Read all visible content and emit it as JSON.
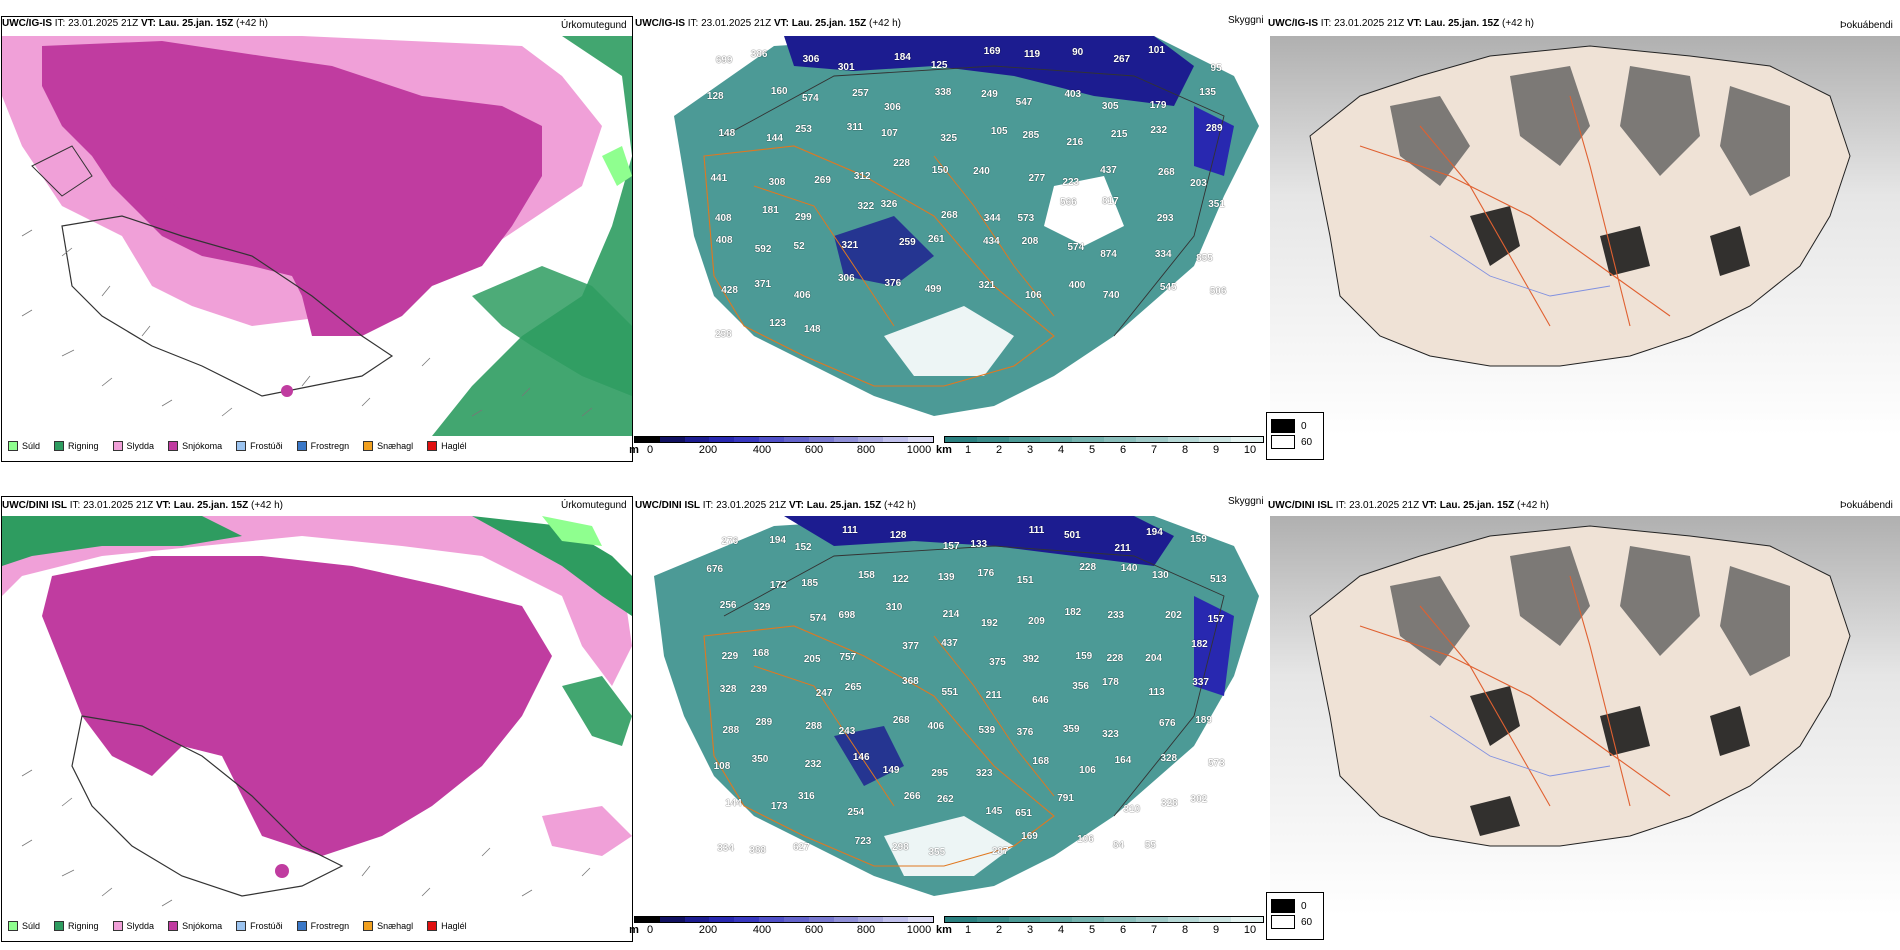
{
  "rows": [
    {
      "model": "UWC/IG-IS",
      "it_label": "IT:",
      "it_value": "23.01.2025 21Z",
      "vt_label": "VT:",
      "vt_value": "Lau. 25.jan. 15Z",
      "lead": "(+42 h)"
    },
    {
      "model": "UWC/DINI ISL",
      "it_label": "IT:",
      "it_value": "23.01.2025 21Z",
      "vt_label": "VT:",
      "vt_value": "Lau. 25.jan. 15Z",
      "lead": "(+42 h)"
    }
  ],
  "panel_labels": {
    "precip_type": "Úrkomutegund",
    "visibility": "Skyggni",
    "fog": "Þokuábendi"
  },
  "precip_legend": [
    {
      "label": "Súld",
      "color": "#8fff8f"
    },
    {
      "label": "Rigning",
      "color": "#2e9c60"
    },
    {
      "label": "Slydda",
      "color": "#f0a0d8"
    },
    {
      "label": "Snjókoma",
      "color": "#c03ca0"
    },
    {
      "label": "Frostúði",
      "color": "#9cc4f0"
    },
    {
      "label": "Frostregn",
      "color": "#3a78c8"
    },
    {
      "label": "Snæhagl",
      "color": "#f0a020"
    },
    {
      "label": "Haglél",
      "color": "#e01010"
    }
  ],
  "height_bar": {
    "unit": "m",
    "ticks": [
      "0",
      "200",
      "400",
      "600",
      "800",
      "1000"
    ],
    "colors": [
      "#000000",
      "#101060",
      "#1c1c90",
      "#2828b0",
      "#3838c0",
      "#5050c8",
      "#6464cc",
      "#7878d0",
      "#9090d8",
      "#a8a8e0",
      "#c0c0ec",
      "#d8d8f4"
    ]
  },
  "vis_bar": {
    "unit": "km",
    "ticks": [
      "1",
      "2",
      "3",
      "4",
      "5",
      "6",
      "7",
      "8",
      "9",
      "10"
    ],
    "colors": [
      "#2a8080",
      "#3a8c8a",
      "#4c9a96",
      "#60a6a2",
      "#74b2ae",
      "#8abebb",
      "#a0cac8",
      "#b6d8d6",
      "#cce4e2",
      "#e4f2f0"
    ]
  },
  "fog_legend": [
    {
      "label": "0",
      "color": "#000000"
    },
    {
      "label": "60",
      "color": "#ffffff"
    }
  ],
  "map_labels_top": [
    "699",
    "386",
    "306",
    "301",
    "184",
    "125",
    "169",
    "119",
    "90",
    "267",
    "101",
    "95",
    "128",
    "160",
    "574",
    "257",
    "306",
    "338",
    "249",
    "547",
    "403",
    "305",
    "179",
    "135",
    "148",
    "144",
    "253",
    "311",
    "107",
    "325",
    "105",
    "285",
    "216",
    "215",
    "232",
    "289",
    "441",
    "308",
    "269",
    "312",
    "228",
    "150",
    "240",
    "277",
    "223",
    "437",
    "268",
    "203",
    "408",
    "181",
    "299",
    "322",
    "326",
    "268",
    "344",
    "573",
    "566",
    "817",
    "293",
    "351",
    "408",
    "592",
    "52",
    "321",
    "259",
    "261",
    "434",
    "208",
    "574",
    "874",
    "334",
    "855",
    "428",
    "371",
    "406",
    "306",
    "376",
    "499",
    "321",
    "106",
    "400",
    "740",
    "545",
    "506",
    "258",
    "123",
    "148"
  ],
  "map_labels_bottom": [
    "276",
    "194",
    "152",
    "111",
    "128",
    "157",
    "133",
    "111",
    "501",
    "211",
    "194",
    "159",
    "676",
    "172",
    "185",
    "158",
    "122",
    "139",
    "176",
    "151",
    "228",
    "140",
    "130",
    "513",
    "256",
    "329",
    "574",
    "698",
    "310",
    "214",
    "192",
    "209",
    "182",
    "233",
    "202",
    "157",
    "229",
    "168",
    "205",
    "757",
    "377",
    "437",
    "375",
    "392",
    "159",
    "228",
    "204",
    "182",
    "328",
    "239",
    "247",
    "265",
    "368",
    "551",
    "211",
    "646",
    "356",
    "178",
    "113",
    "337",
    "288",
    "289",
    "288",
    "243",
    "268",
    "406",
    "539",
    "376",
    "359",
    "323",
    "676",
    "189",
    "108",
    "350",
    "232",
    "146",
    "149",
    "295",
    "323",
    "168",
    "106",
    "164",
    "328",
    "573",
    "144",
    "173",
    "316",
    "254",
    "266",
    "262",
    "145",
    "651",
    "791",
    "310",
    "328",
    "302",
    "334",
    "388",
    "627",
    "723",
    "298",
    "355",
    "287",
    "169",
    "106",
    "84",
    "55"
  ]
}
